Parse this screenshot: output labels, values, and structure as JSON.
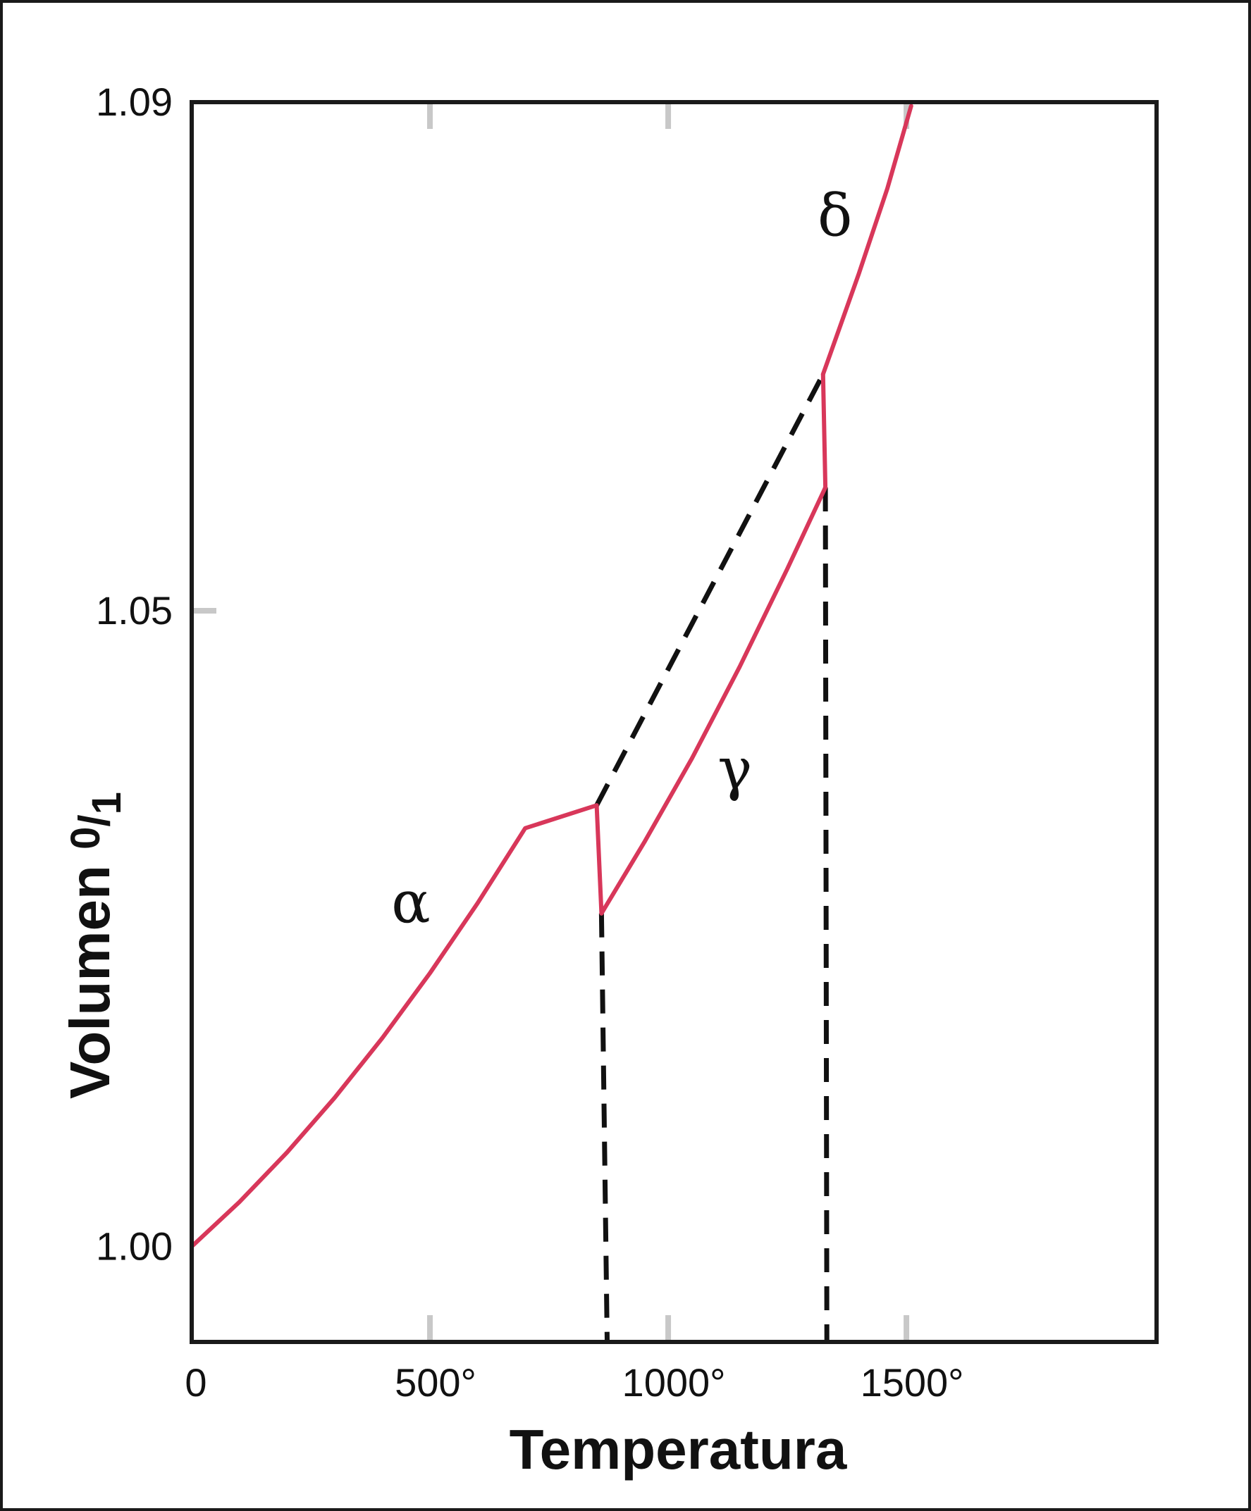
{
  "chart_data": {
    "type": "line",
    "title": "",
    "xlabel": "Temperatura",
    "ylabel": "Volumen",
    "ylabel_fraction": {
      "numerator": "0",
      "denominator": "1"
    },
    "xlim": [
      0,
      2025
    ],
    "ylim": [
      0.9925,
      1.09
    ],
    "x_ticks": [
      {
        "value": 0,
        "label": "0"
      },
      {
        "value": 500,
        "label": "500°"
      },
      {
        "value": 1000,
        "label": "1000°"
      },
      {
        "value": 1500,
        "label": "1500°"
      }
    ],
    "y_ticks": [
      {
        "value": 1.0,
        "label": "1.00"
      },
      {
        "value": 1.05,
        "label": "1.05"
      },
      {
        "value": 1.09,
        "label": "1.09"
      }
    ],
    "grid": false,
    "colors": {
      "curve": "#d8375a",
      "dashed": "#111111",
      "frame": "#1a1a1a",
      "tick": "#c8c8c8"
    },
    "series": [
      {
        "phase_label": "α",
        "label_at": [
          460,
          1.0255
        ],
        "points": [
          [
            0,
            1.0
          ],
          [
            100,
            1.0035
          ],
          [
            200,
            1.0074
          ],
          [
            300,
            1.0117
          ],
          [
            400,
            1.0164
          ],
          [
            500,
            1.0215
          ],
          [
            600,
            1.027
          ],
          [
            700,
            1.0329
          ],
          [
            850,
            1.0347
          ]
        ]
      },
      {
        "phase_label": "γ",
        "label_at": [
          1140,
          1.036
        ],
        "points": [
          [
            860,
            1.0262
          ],
          [
            950,
            1.0318
          ],
          [
            1050,
            1.0384
          ],
          [
            1150,
            1.0456
          ],
          [
            1250,
            1.0533
          ],
          [
            1330,
            1.0597
          ]
        ]
      },
      {
        "phase_label": "δ",
        "label_at": [
          1350,
          1.0795
        ],
        "points": [
          [
            1325,
            1.0686
          ],
          [
            1400,
            1.0765
          ],
          [
            1460,
            1.0832
          ],
          [
            1510,
            1.0897
          ]
        ]
      }
    ],
    "transition_jumps": [
      {
        "points": [
          [
            850,
            1.0347
          ],
          [
            860,
            1.0262
          ]
        ]
      },
      {
        "points": [
          [
            1325,
            1.0686
          ],
          [
            1330,
            1.0597
          ]
        ]
      }
    ],
    "dashed_lines": [
      {
        "points": [
          [
            850,
            1.0347
          ],
          [
            1325,
            1.0686
          ]
        ]
      },
      {
        "points": [
          [
            860,
            1.0262
          ],
          [
            872,
            0.9925
          ]
        ]
      },
      {
        "points": [
          [
            1330,
            1.0597
          ],
          [
            1333,
            0.9925
          ]
        ]
      }
    ]
  }
}
